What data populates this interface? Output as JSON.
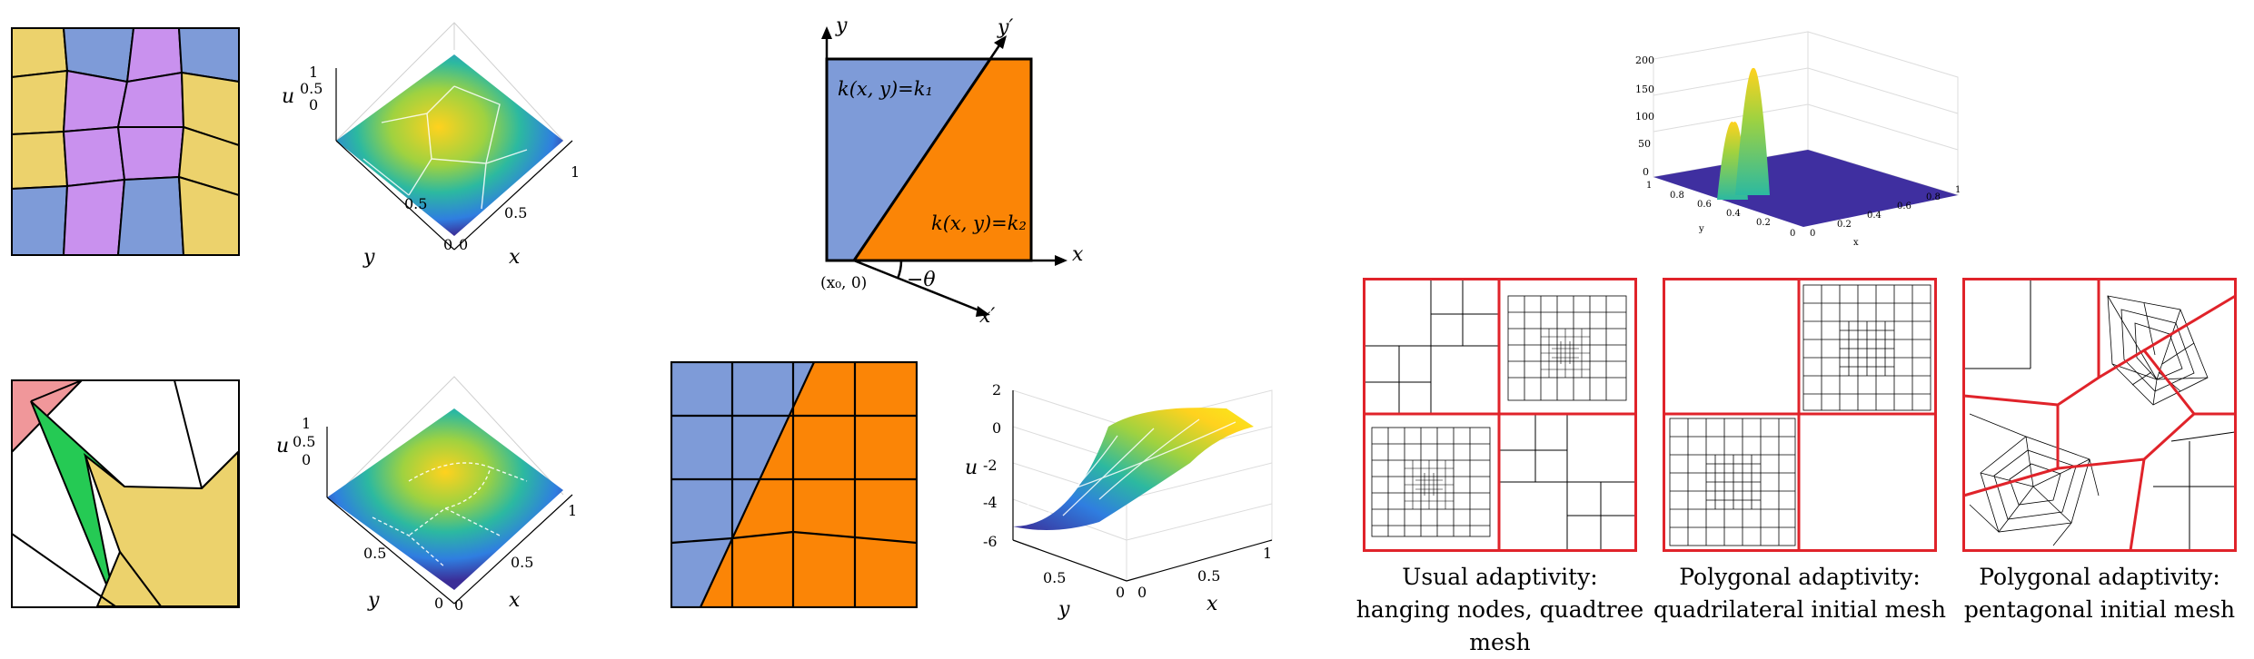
{
  "colors": {
    "blue": "#7e9bd8",
    "purple": "#c991ee",
    "yellow": "#ecd26c",
    "orange": "#fb8506",
    "green": "#25ca54",
    "pink": "#f0979a",
    "red": "#e0232a",
    "mesh_deep": "#3b2d97"
  },
  "plot1": {
    "axis_u": "u",
    "axis_x": "x",
    "axis_y": "y",
    "u_ticks": [
      "1",
      "0.5",
      "0"
    ],
    "x_ticks": [
      "0",
      "0.5",
      "1"
    ],
    "y_ticks": [
      "0.5",
      "0"
    ]
  },
  "plot2": {
    "axis_u": "u",
    "axis_x": "x",
    "axis_y": "y",
    "u_ticks": [
      "1",
      "0.5",
      "0"
    ],
    "x_ticks": [
      "0",
      "0.5",
      "1"
    ],
    "y_ticks": [
      "0.5",
      "0"
    ]
  },
  "plot3": {
    "axis_u": "u",
    "axis_x": "x",
    "axis_y": "y",
    "u_ticks": [
      "2",
      "0",
      "-2",
      "-4",
      "-6"
    ],
    "x_ticks": [
      "0",
      "0.5",
      "1"
    ],
    "y_ticks": [
      "0.5",
      "0"
    ]
  },
  "domain_diagram": {
    "axis_x": "x",
    "axis_y": "y",
    "axis_xp": "x′",
    "axis_yp": "y′",
    "region1": "k(x, y)=k₁",
    "region2": "k(x, y)=k₂",
    "origin": "(x₀, 0)",
    "angle": "−θ"
  },
  "peaks_plot": {
    "z_ticks": [
      "200",
      "150",
      "100",
      "50",
      "0"
    ],
    "y_ticks": [
      "1",
      "0.8",
      "0.6",
      "0.4",
      "0.2",
      "0"
    ],
    "x_ticks": [
      "0",
      "0.2",
      "0.4",
      "0.6",
      "0.8",
      "1"
    ],
    "axis_x": "x",
    "axis_y": "y"
  },
  "captions": [
    {
      "line1": "Usual adaptivity:",
      "line2": "hanging nodes, quadtree mesh"
    },
    {
      "line1": "Polygonal adaptivity:",
      "line2": "quadrilateral initial mesh"
    },
    {
      "line1": "Polygonal adaptivity:",
      "line2": "pentagonal initial mesh"
    }
  ]
}
